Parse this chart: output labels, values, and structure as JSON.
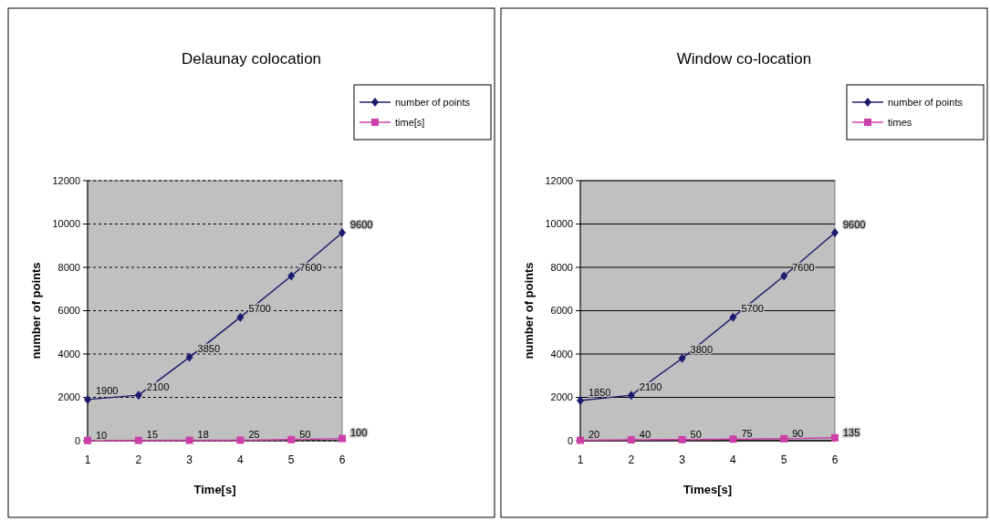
{
  "chart_data": [
    {
      "type": "line",
      "title": "Delaunay colocation",
      "xlabel": "Time[s]",
      "ylabel": "number of points",
      "categories": [
        "1",
        "2",
        "3",
        "4",
        "5",
        "6"
      ],
      "ylim": [
        0,
        12000
      ],
      "yticks": [
        0,
        2000,
        4000,
        6000,
        8000,
        10000,
        12000
      ],
      "grid": "y",
      "legend": "top right",
      "data_labels": true,
      "series": [
        {
          "name": "number of points",
          "color": "#1c1c6e",
          "marker": "diamond",
          "values": [
            1900,
            2100,
            3850,
            5700,
            7600,
            9600
          ]
        },
        {
          "name": "time[s]",
          "color": "#cc3fa8",
          "marker": "square",
          "values": [
            10,
            15,
            18,
            25,
            50,
            100
          ]
        }
      ]
    },
    {
      "type": "line",
      "title": "Window co-location",
      "xlabel": "Times[s]",
      "ylabel": "number of points",
      "categories": [
        "1",
        "2",
        "3",
        "4",
        "5",
        "6"
      ],
      "ylim": [
        0,
        12000
      ],
      "yticks": [
        0,
        2000,
        4000,
        6000,
        8000,
        10000,
        12000
      ],
      "grid": "y",
      "legend": "top right",
      "data_labels": true,
      "series": [
        {
          "name": "number of points",
          "color": "#1c1c6e",
          "marker": "diamond",
          "values": [
            1850,
            2100,
            3800,
            5700,
            7600,
            9600
          ]
        },
        {
          "name": "times",
          "color": "#cc3fa8",
          "marker": "square",
          "values": [
            20,
            40,
            50,
            75,
            90,
            135
          ]
        }
      ]
    }
  ]
}
